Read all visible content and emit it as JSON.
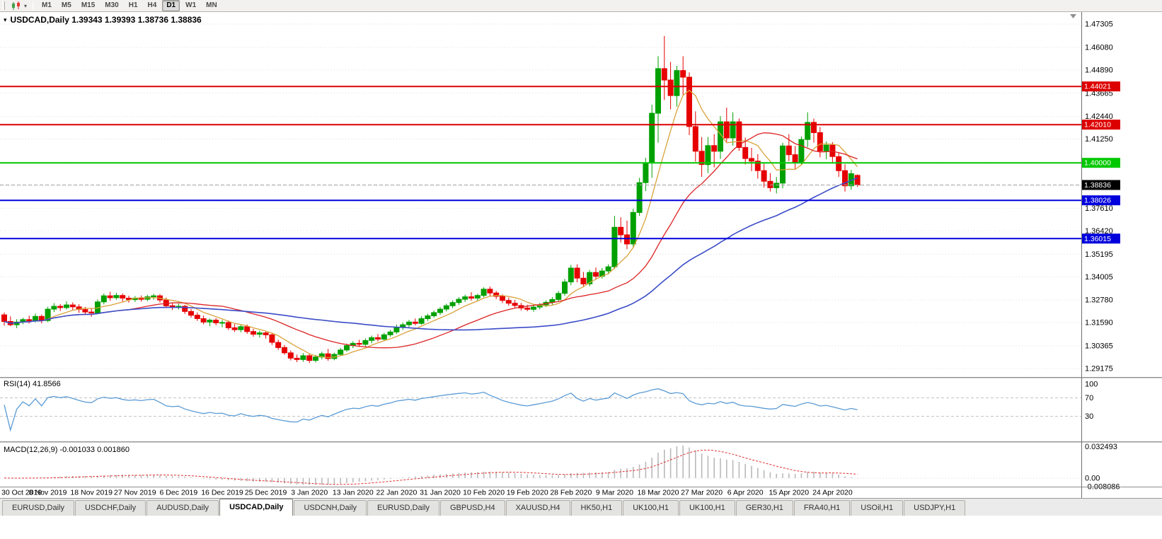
{
  "toolbar": {
    "timeframes": [
      "M1",
      "M5",
      "M15",
      "M30",
      "H1",
      "H4",
      "D1",
      "W1",
      "MN"
    ],
    "active": "D1",
    "dropdown_glyph": "▾"
  },
  "tab_bar": {
    "active_index": 3,
    "items": [
      "EURUSD,Daily",
      "USDCHF,Daily",
      "AUDUSD,Daily",
      "USDCAD,Daily",
      "USDCNH,Daily",
      "EURUSD,Daily",
      "GBPUSD,H4",
      "XAUUSD,H4",
      "HK50,H1",
      "UK100,H1",
      "UK100,H1",
      "GER30,H1",
      "FRA40,H1",
      "USOil,H1",
      "USDJPY,H1"
    ]
  },
  "chart_data": {
    "type": "candlestick",
    "symbol": "USDCAD",
    "timeframe": "Daily",
    "title": "USDCAD,Daily  1.39343 1.39393 1.38736 1.38836",
    "title_marker": "▾",
    "price_scale": {
      "min": 1.28728,
      "max": 1.47938
    },
    "price_ticks": [
      "1.47305",
      "1.46080",
      "1.44890",
      "1.43665",
      "1.42440",
      "1.41250",
      "1.40025",
      "1.38800",
      "1.37610",
      "1.36420",
      "1.35195",
      "1.34005",
      "1.32780",
      "1.31590",
      "1.30365",
      "1.29175"
    ],
    "bid": {
      "value": 1.38836,
      "label": "1.38836",
      "color": "#000000"
    },
    "horizontal_lines": [
      {
        "value": 1.44021,
        "label": "1.44021",
        "color": "#dd0000"
      },
      {
        "value": 1.4201,
        "label": "1.42010",
        "color": "#dd0000"
      },
      {
        "value": 1.4,
        "label": "1.40000",
        "color": "#00c800"
      },
      {
        "value": 1.38026,
        "label": "1.38026",
        "color": "#0000dd"
      },
      {
        "value": 1.36015,
        "label": "1.36015",
        "color": "#0000dd"
      }
    ],
    "colors": {
      "candle_up": "#00a000",
      "candle_down": "#e60000",
      "grid": "#dcdcdc",
      "background": "#ffffff"
    },
    "moving_averages": [
      {
        "name": "fast",
        "type": "sma",
        "period": 7,
        "color": "#d9a23a",
        "width": 1.3
      },
      {
        "name": "mid",
        "type": "sma",
        "period": 21,
        "color": "#dd2222",
        "width": 1.3
      },
      {
        "name": "slow",
        "type": "sma",
        "period": 50,
        "color": "#3b4cc8",
        "width": 1.6
      }
    ],
    "rsi": {
      "label": "RSI(14) 41.8566",
      "period": 14,
      "color": "#5b9bd5",
      "levels": [
        70,
        30
      ],
      "axis_labels": [
        {
          "text": "100",
          "value": 100
        },
        {
          "text": "70",
          "value": 70
        },
        {
          "text": "30",
          "value": 30
        }
      ]
    },
    "macd": {
      "label": "MACD(12,26,9) -0.001033 0.001860",
      "fast": 12,
      "slow": 26,
      "signal": 9,
      "scale": {
        "min": -0.008086,
        "max": 0.032493
      },
      "axis_labels": [
        {
          "text": "0.032493",
          "value": 0.032493
        },
        {
          "text": "0.00",
          "value": 0
        },
        {
          "text": "-0.008086",
          "value": -0.008086
        }
      ],
      "histogram_color": "#b9b9b9",
      "signal_color": "#e03030"
    },
    "x_labels": [
      "30 Oct 2019",
      "8 Nov 2019",
      "18 Nov 2019",
      "27 Nov 2019",
      "6 Dec 2019",
      "16 Dec 2019",
      "25 Dec 2019",
      "3 Jan 2020",
      "13 Jan 2020",
      "22 Jan 2020",
      "31 Jan 2020",
      "10 Feb 2020",
      "19 Feb 2020",
      "28 Feb 2020",
      "9 Mar 2020",
      "18 Mar 2020",
      "27 Mar 2020",
      "6 Apr 2020",
      "15 Apr 2020",
      "24 Apr 2020"
    ],
    "x_label_indices": [
      0,
      7,
      14,
      21,
      28,
      35,
      42,
      49,
      56,
      63,
      70,
      77,
      84,
      91,
      98,
      105,
      112,
      119,
      126,
      133
    ],
    "candles": [
      [
        1.32,
        1.3212,
        1.3143,
        1.3165
      ],
      [
        1.3165,
        1.3192,
        1.314,
        1.3148
      ],
      [
        1.3148,
        1.3177,
        1.313,
        1.3162
      ],
      [
        1.3162,
        1.3185,
        1.315,
        1.3175
      ],
      [
        1.3175,
        1.3196,
        1.3155,
        1.3168
      ],
      [
        1.3168,
        1.3207,
        1.316,
        1.3192
      ],
      [
        1.3192,
        1.3202,
        1.3155,
        1.317
      ],
      [
        1.317,
        1.3242,
        1.3162,
        1.323
      ],
      [
        1.323,
        1.3262,
        1.3215,
        1.3245
      ],
      [
        1.3245,
        1.3257,
        1.322,
        1.3238
      ],
      [
        1.3238,
        1.3271,
        1.3228,
        1.3252
      ],
      [
        1.3252,
        1.3266,
        1.3225,
        1.3242
      ],
      [
        1.3242,
        1.3256,
        1.321,
        1.3228
      ],
      [
        1.3228,
        1.3241,
        1.32,
        1.3215
      ],
      [
        1.3215,
        1.3236,
        1.319,
        1.321
      ],
      [
        1.321,
        1.3281,
        1.3205,
        1.3268
      ],
      [
        1.3268,
        1.3312,
        1.3255,
        1.33
      ],
      [
        1.33,
        1.3321,
        1.3275,
        1.329
      ],
      [
        1.329,
        1.3316,
        1.328,
        1.3302
      ],
      [
        1.3302,
        1.3313,
        1.327,
        1.3288
      ],
      [
        1.3288,
        1.3301,
        1.3265,
        1.328
      ],
      [
        1.328,
        1.3299,
        1.3268,
        1.3288
      ],
      [
        1.3288,
        1.3302,
        1.327,
        1.3282
      ],
      [
        1.3282,
        1.3306,
        1.3272,
        1.3295
      ],
      [
        1.3295,
        1.3311,
        1.328,
        1.33
      ],
      [
        1.33,
        1.3309,
        1.3265,
        1.3278
      ],
      [
        1.3278,
        1.3291,
        1.3235,
        1.3248
      ],
      [
        1.3248,
        1.3263,
        1.3225,
        1.324
      ],
      [
        1.324,
        1.3259,
        1.3228,
        1.3245
      ],
      [
        1.3245,
        1.3253,
        1.3205,
        1.3218
      ],
      [
        1.3218,
        1.3231,
        1.3185,
        1.3198
      ],
      [
        1.3198,
        1.3213,
        1.3168,
        1.318
      ],
      [
        1.318,
        1.3196,
        1.315,
        1.3162
      ],
      [
        1.3162,
        1.3181,
        1.314,
        1.3172
      ],
      [
        1.3172,
        1.3183,
        1.3145,
        1.3158
      ],
      [
        1.3158,
        1.3173,
        1.3135,
        1.316
      ],
      [
        1.316,
        1.3171,
        1.312,
        1.3132
      ],
      [
        1.3132,
        1.3151,
        1.311,
        1.3122
      ],
      [
        1.3122,
        1.3146,
        1.3108,
        1.3138
      ],
      [
        1.3138,
        1.3149,
        1.31,
        1.3112
      ],
      [
        1.3112,
        1.3126,
        1.3085,
        1.3098
      ],
      [
        1.3098,
        1.3116,
        1.308,
        1.3105
      ],
      [
        1.3105,
        1.3113,
        1.3075,
        1.3095
      ],
      [
        1.3095,
        1.3106,
        1.3042,
        1.3055
      ],
      [
        1.3055,
        1.3069,
        1.3015,
        1.3028
      ],
      [
        1.3028,
        1.3041,
        1.299,
        1.3
      ],
      [
        1.3,
        1.3013,
        1.296,
        1.2972
      ],
      [
        1.2972,
        1.2991,
        1.2951,
        1.2965
      ],
      [
        1.2965,
        1.2999,
        1.2953,
        1.2985
      ],
      [
        1.2985,
        1.2996,
        1.2946,
        1.296
      ],
      [
        1.296,
        1.2989,
        1.2949,
        1.2978
      ],
      [
        1.2978,
        1.3006,
        1.2965,
        1.2995
      ],
      [
        1.2995,
        1.3021,
        1.2958,
        1.297
      ],
      [
        1.297,
        1.3001,
        1.2961,
        1.2992
      ],
      [
        1.2992,
        1.3026,
        1.2986,
        1.3015
      ],
      [
        1.3015,
        1.3049,
        1.3006,
        1.3038
      ],
      [
        1.3038,
        1.3061,
        1.3025,
        1.305
      ],
      [
        1.305,
        1.3069,
        1.3032,
        1.3045
      ],
      [
        1.3045,
        1.3076,
        1.3035,
        1.3065
      ],
      [
        1.3065,
        1.3091,
        1.305,
        1.308
      ],
      [
        1.308,
        1.3099,
        1.306,
        1.3072
      ],
      [
        1.3072,
        1.3106,
        1.3065,
        1.3095
      ],
      [
        1.3095,
        1.3121,
        1.3085,
        1.311
      ],
      [
        1.311,
        1.3149,
        1.31,
        1.3135
      ],
      [
        1.3135,
        1.3159,
        1.312,
        1.3148
      ],
      [
        1.3148,
        1.3173,
        1.3135,
        1.3162
      ],
      [
        1.3162,
        1.3181,
        1.3145,
        1.3155
      ],
      [
        1.3155,
        1.3193,
        1.3148,
        1.318
      ],
      [
        1.318,
        1.3206,
        1.3168,
        1.3195
      ],
      [
        1.3195,
        1.3223,
        1.3185,
        1.3212
      ],
      [
        1.3212,
        1.3241,
        1.32,
        1.323
      ],
      [
        1.323,
        1.3259,
        1.3218,
        1.3248
      ],
      [
        1.3248,
        1.3276,
        1.3235,
        1.3265
      ],
      [
        1.3265,
        1.3293,
        1.3252,
        1.3282
      ],
      [
        1.3282,
        1.3306,
        1.3268,
        1.3295
      ],
      [
        1.3295,
        1.3319,
        1.3275,
        1.3288
      ],
      [
        1.3288,
        1.3311,
        1.3272,
        1.3302
      ],
      [
        1.3302,
        1.3345,
        1.3292,
        1.3335
      ],
      [
        1.3335,
        1.3349,
        1.33,
        1.3315
      ],
      [
        1.3315,
        1.3326,
        1.3283,
        1.3297
      ],
      [
        1.3297,
        1.3308,
        1.3262,
        1.3276
      ],
      [
        1.3276,
        1.3291,
        1.3248,
        1.3261
      ],
      [
        1.3261,
        1.3279,
        1.3236,
        1.3249
      ],
      [
        1.3249,
        1.3263,
        1.3223,
        1.3236
      ],
      [
        1.3236,
        1.3253,
        1.3219,
        1.3229
      ],
      [
        1.3229,
        1.3249,
        1.3216,
        1.3241
      ],
      [
        1.3241,
        1.3263,
        1.3229,
        1.3253
      ],
      [
        1.3253,
        1.3276,
        1.3241,
        1.3266
      ],
      [
        1.3266,
        1.3293,
        1.3253,
        1.3281
      ],
      [
        1.3281,
        1.3326,
        1.3269,
        1.3313
      ],
      [
        1.3313,
        1.3389,
        1.3301,
        1.3373
      ],
      [
        1.3373,
        1.3463,
        1.3356,
        1.3446
      ],
      [
        1.3446,
        1.3466,
        1.3371,
        1.3393
      ],
      [
        1.3393,
        1.3426,
        1.3346,
        1.3363
      ],
      [
        1.3363,
        1.3436,
        1.3351,
        1.3423
      ],
      [
        1.3423,
        1.3449,
        1.3386,
        1.3403
      ],
      [
        1.3403,
        1.3446,
        1.3391,
        1.3431
      ],
      [
        1.3431,
        1.3466,
        1.3413,
        1.3453
      ],
      [
        1.3453,
        1.3721,
        1.3441,
        1.3661
      ],
      [
        1.3661,
        1.3713,
        1.3581,
        1.3621
      ],
      [
        1.3621,
        1.3696,
        1.3546,
        1.3573
      ],
      [
        1.3573,
        1.3759,
        1.3553,
        1.3739
      ],
      [
        1.3739,
        1.3921,
        1.3721,
        1.3896
      ],
      [
        1.3896,
        1.4026,
        1.3851,
        1.4001
      ],
      [
        1.4001,
        1.4306,
        1.3921,
        1.4261
      ],
      [
        1.4261,
        1.4561,
        1.4106,
        1.4496
      ],
      [
        1.4496,
        1.4668,
        1.4331,
        1.4436
      ],
      [
        1.4436,
        1.4531,
        1.4281,
        1.4354
      ],
      [
        1.4354,
        1.4511,
        1.4296,
        1.4486
      ],
      [
        1.4486,
        1.4561,
        1.4356,
        1.4451
      ],
      [
        1.4451,
        1.4476,
        1.4146,
        1.4191
      ],
      [
        1.4191,
        1.4271,
        1.4006,
        1.4061
      ],
      [
        1.4061,
        1.4136,
        1.3926,
        1.3991
      ],
      [
        1.3991,
        1.4136,
        1.3946,
        1.4091
      ],
      [
        1.4091,
        1.4151,
        1.3976,
        1.4061
      ],
      [
        1.4061,
        1.4246,
        1.4021,
        1.4216
      ],
      [
        1.4216,
        1.4291,
        1.4109,
        1.4131
      ],
      [
        1.4131,
        1.4266,
        1.4091,
        1.4216
      ],
      [
        1.4216,
        1.4233,
        1.4063,
        1.4081
      ],
      [
        1.4081,
        1.4133,
        1.3991,
        1.4023
      ],
      [
        1.4023,
        1.4079,
        1.3956,
        1.4009
      ],
      [
        1.4009,
        1.4046,
        1.3917,
        1.3959
      ],
      [
        1.3959,
        1.3996,
        1.3871,
        1.3903
      ],
      [
        1.3903,
        1.3946,
        1.3849,
        1.3869
      ],
      [
        1.3869,
        1.3926,
        1.3839,
        1.3893
      ],
      [
        1.3893,
        1.4106,
        1.3866,
        1.4089
      ],
      [
        1.4089,
        1.4151,
        1.4009,
        1.4043
      ],
      [
        1.4043,
        1.4089,
        1.3967,
        1.4003
      ],
      [
        1.4003,
        1.4139,
        1.3989,
        1.4123
      ],
      [
        1.4123,
        1.4266,
        1.4083,
        1.4213
      ],
      [
        1.4213,
        1.4233,
        1.4107,
        1.4159
      ],
      [
        1.4159,
        1.4189,
        1.4029,
        1.4063
      ],
      [
        1.4063,
        1.4113,
        1.4019,
        1.4093
      ],
      [
        1.4093,
        1.4109,
        1.3999,
        1.4033
      ],
      [
        1.4033,
        1.4053,
        1.3926,
        1.3959
      ],
      [
        1.3959,
        1.3993,
        1.3849,
        1.3879
      ],
      [
        1.3879,
        1.3963,
        1.3859,
        1.3943
      ],
      [
        1.39343,
        1.39393,
        1.38736,
        1.38836
      ]
    ]
  }
}
